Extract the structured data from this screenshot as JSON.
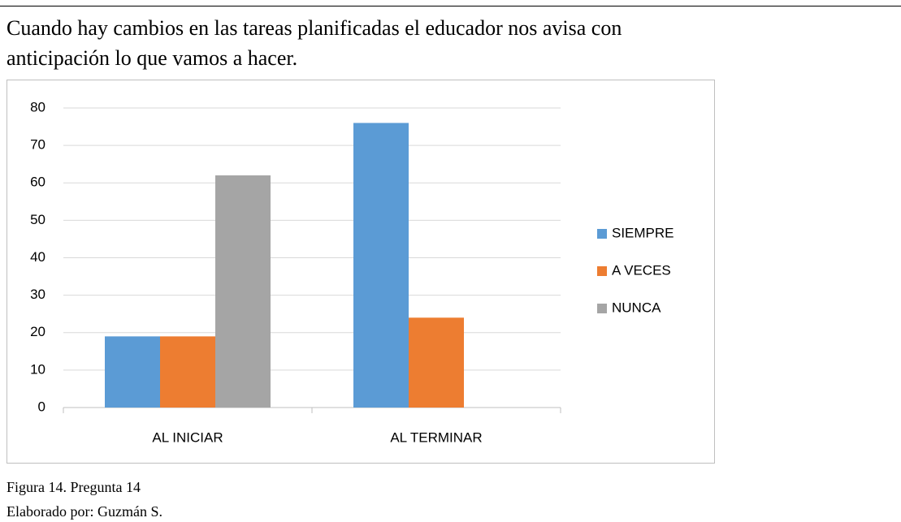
{
  "heading": "Cuando hay cambios en las tareas planificadas el educador nos avisa con anticipación lo que vamos a hacer.",
  "chart_data": {
    "type": "bar",
    "categories": [
      "AL INICIAR",
      "AL TERMINAR"
    ],
    "series": [
      {
        "name": "SIEMPRE",
        "color": "#5b9bd5",
        "values": [
          19,
          76
        ]
      },
      {
        "name": "A VECES",
        "color": "#ed7d31",
        "values": [
          19,
          24
        ]
      },
      {
        "name": "NUNCA",
        "color": "#a5a5a5",
        "values": [
          62,
          0
        ]
      }
    ],
    "ylim": [
      0,
      80
    ],
    "yticks": [
      0,
      10,
      20,
      30,
      40,
      50,
      60,
      70,
      80
    ],
    "grid": true,
    "legend": "right"
  },
  "caption": [
    "Figura 14. Pregunta 14",
    "Elaborado por: Guzmán S."
  ]
}
